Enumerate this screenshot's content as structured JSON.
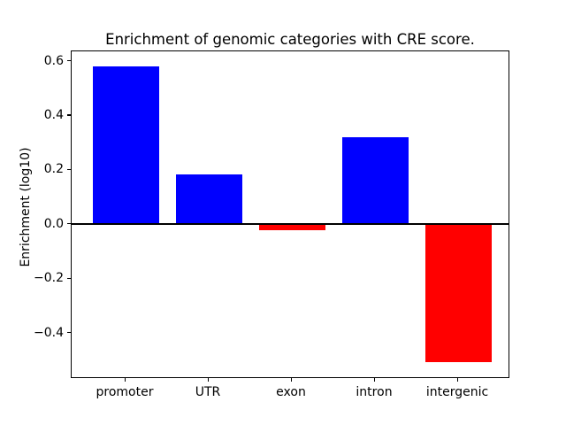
{
  "figure": {
    "title": "Enrichment of genomic categories with CRE score.",
    "ylabel": "Enrichment (log10)"
  },
  "chart_data": {
    "type": "bar",
    "title": "Enrichment of genomic categories with CRE score.",
    "xlabel": "",
    "ylabel": "Enrichment (log10)",
    "categories": [
      "promoter",
      "UTR",
      "exon",
      "intron",
      "intergenic"
    ],
    "values": [
      0.58,
      0.18,
      -0.025,
      0.32,
      -0.51
    ],
    "bar_colors": [
      "#0000ff",
      "#0000ff",
      "#ff0000",
      "#0000ff",
      "#ff0000"
    ],
    "positive_color": "#0000ff",
    "negative_color": "#ff0000",
    "zero_line_color": "#000000",
    "ylim": [
      -0.5645,
      0.6345
    ],
    "yticks": [
      {
        "value": 0.6,
        "label": "0.6"
      },
      {
        "value": 0.4,
        "label": "0.4"
      },
      {
        "value": 0.2,
        "label": "0.2"
      },
      {
        "value": 0.0,
        "label": "0.0"
      },
      {
        "value": -0.2,
        "label": "−0.2"
      },
      {
        "value": -0.4,
        "label": "−0.4"
      }
    ],
    "grid": false,
    "legend": "none",
    "zero_line": true,
    "background": "#ffffff"
  }
}
